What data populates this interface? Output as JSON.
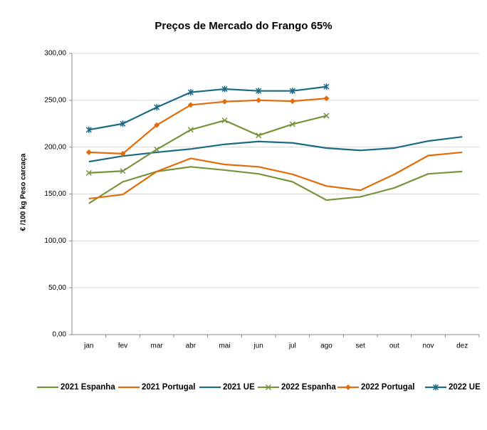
{
  "chart_data": {
    "type": "line",
    "title": "Preços de Mercado do Frango 65%",
    "y_label": "€ /100 kg Peso carcaça",
    "categories": [
      "jan",
      "fev",
      "mar",
      "abr",
      "mai",
      "jun",
      "jul",
      "ago",
      "set",
      "out",
      "nov",
      "dez"
    ],
    "ylim": [
      0,
      300
    ],
    "yticks": [
      {
        "value": 0,
        "label": "0,00"
      },
      {
        "value": 50,
        "label": "50,00"
      },
      {
        "value": 100,
        "label": "100,00"
      },
      {
        "value": 150,
        "label": "150,00"
      },
      {
        "value": 200,
        "label": "200,00"
      },
      {
        "value": 250,
        "label": "250,00"
      },
      {
        "value": 300,
        "label": "300,00"
      }
    ],
    "grid": true,
    "legend": "bottom",
    "series": [
      {
        "name": "2021 Espanha",
        "color": "#77933c",
        "marker": "none",
        "values": [
          140,
          163,
          174,
          179,
          175.5,
          171.5,
          163,
          143.5,
          147,
          156.5,
          171.5,
          174
        ]
      },
      {
        "name": "2021 Portugal",
        "color": "#e36c0a",
        "marker": "none",
        "values": [
          145,
          149.5,
          174,
          188,
          181.5,
          179,
          171,
          158.5,
          154,
          171,
          191,
          194.5
        ]
      },
      {
        "name": "2021 UE",
        "color": "#1c6b84",
        "marker": "none",
        "values": [
          184.5,
          190.5,
          194.5,
          198,
          203,
          206,
          204.5,
          199,
          196.5,
          199,
          206.5,
          211
        ]
      },
      {
        "name": "2022 Espanha",
        "color": "#77933c",
        "marker": "x",
        "values": [
          172.5,
          174.5,
          197.5,
          218.5,
          228.5,
          212.5,
          224.5,
          233.5,
          null,
          null,
          null,
          null
        ]
      },
      {
        "name": "2022 Portugal",
        "color": "#e36c0a",
        "marker": "diamond",
        "values": [
          194.5,
          193,
          223.5,
          245,
          248.5,
          250,
          249,
          252,
          null,
          null,
          null,
          null
        ]
      },
      {
        "name": "2022 UE",
        "color": "#1c6b84",
        "marker": "star",
        "values": [
          218.5,
          225,
          242.5,
          258.5,
          262,
          260,
          260,
          264.5,
          null,
          null,
          null,
          null
        ]
      }
    ]
  }
}
